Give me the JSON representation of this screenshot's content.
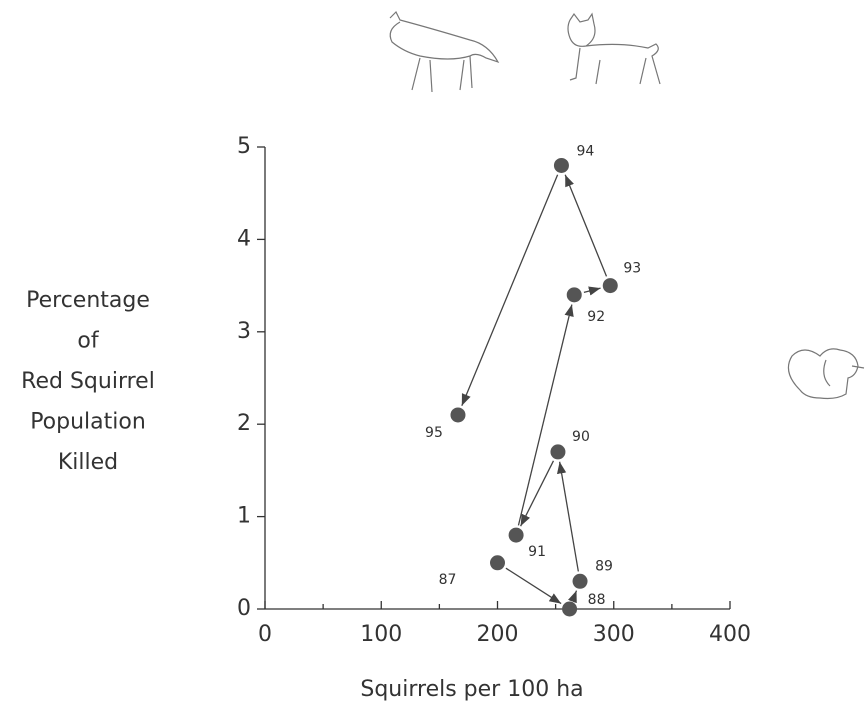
{
  "chart_data": {
    "type": "scatter",
    "x_label": "Squirrels per 100 ha",
    "y_label": [
      "Percentage",
      "of",
      "Red Squirrel",
      "Population",
      "Killed"
    ],
    "labels": [
      "87",
      "88",
      "89",
      "90",
      "91",
      "92",
      "93",
      "94",
      "95"
    ],
    "x": [
      200,
      262,
      271,
      252,
      216,
      266,
      297,
      255,
      166
    ],
    "values": [
      0.5,
      0,
      0.3,
      1.7,
      0.8,
      3.4,
      3.5,
      4.8,
      2.1
    ],
    "color": "#555555",
    "connect": "arrows",
    "xlim": [
      0,
      400
    ],
    "xticks": [
      0,
      100,
      200,
      300,
      400
    ],
    "xminorticks": [
      50,
      150,
      250,
      350
    ],
    "ylim": [
      0,
      5
    ],
    "yticks": [
      0,
      1,
      2,
      3,
      4,
      5
    ]
  }
}
